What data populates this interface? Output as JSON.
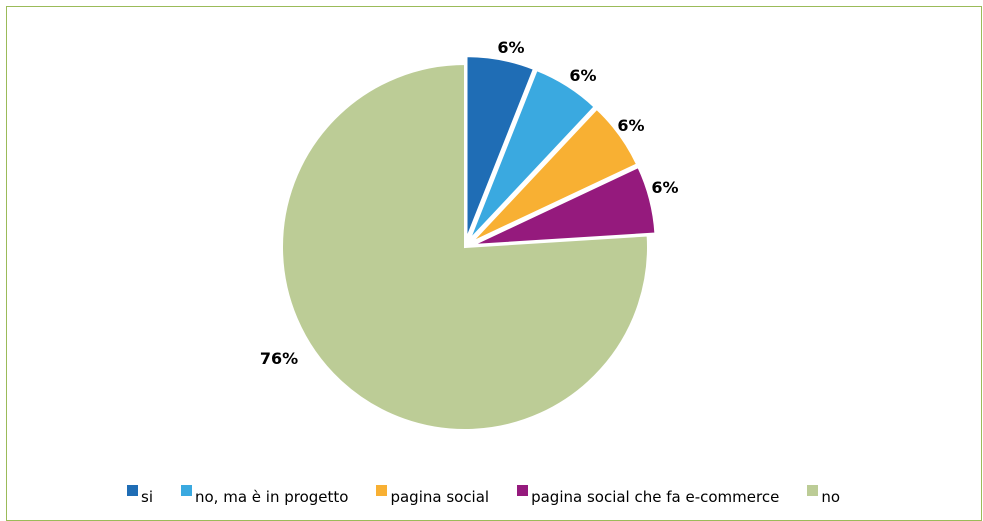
{
  "chart_data": {
    "type": "pie",
    "title": "",
    "categories": [
      "si",
      "no, ma è in progetto",
      "pagina social",
      "pagina social che fa e-commerce",
      "no"
    ],
    "values": [
      6,
      6,
      6,
      6,
      76
    ],
    "data_labels": [
      "6%",
      "6%",
      "6%",
      "6%",
      "76%"
    ],
    "colors": [
      "#1f6db5",
      "#3aa9e0",
      "#f8b033",
      "#951a7d",
      "#bccc96"
    ],
    "legend_position": "bottom",
    "exploded": [
      true,
      true,
      true,
      true,
      false
    ],
    "frame_border_color": "#9bbb59"
  }
}
